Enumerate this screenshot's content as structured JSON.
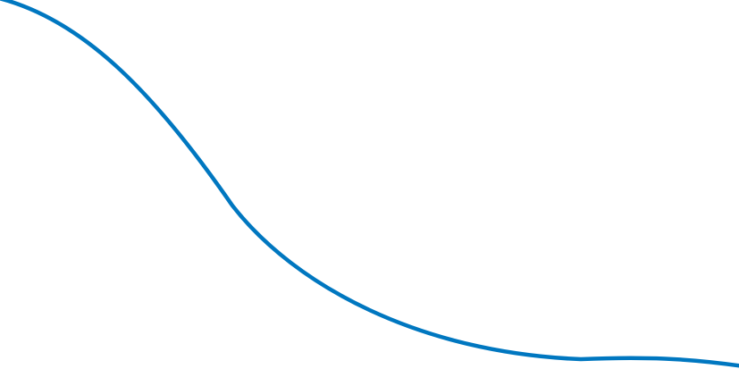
{
  "decoration": {
    "curve_color": "#0077c0"
  }
}
